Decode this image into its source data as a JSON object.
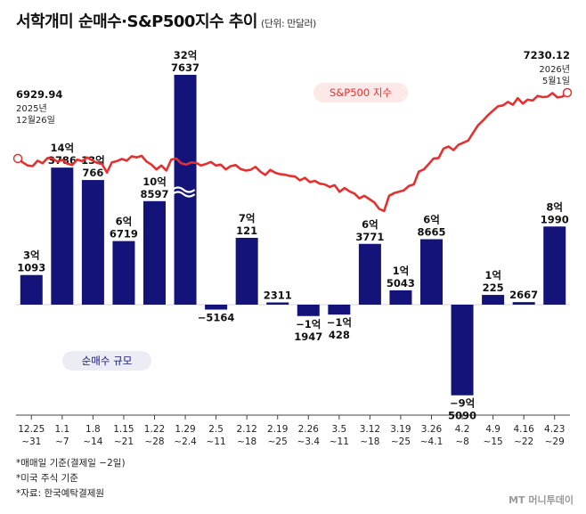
{
  "title": "서학개미 순매수·S&P500지수 추이",
  "unit": "(단위: 만달러)",
  "footnotes": [
    "*매매일 기준(결제일 −2일)",
    "*미국 주식 기준",
    "*자료: 한국예탁결제원"
  ],
  "logo": "MT 머니투데이",
  "colors": {
    "bar": "#13137a",
    "line": "#e53030",
    "legend_bg": "#ececf4"
  },
  "chart_data": {
    "type": "bar+line",
    "categories": [
      "12.25 ~31",
      "1.1 ~7",
      "1.8 ~14",
      "1.15 ~21",
      "1.22 ~28",
      "1.29 ~2.4",
      "2.5 ~11",
      "2.12 ~18",
      "2.19 ~25",
      "2.26 ~3.4",
      "3.5 ~11",
      "3.12 ~18",
      "3.19 ~25",
      "3.26 ~4.1",
      "4.2 ~8",
      "4.9 ~15",
      "4.16 ~22",
      "4.23 ~29"
    ],
    "bar_series": {
      "name": "순매수 규모",
      "values": [
        31093,
        143786,
        130766,
        66719,
        108597,
        327637,
        -5164,
        70121,
        2311,
        -11947,
        -10428,
        63771,
        15043,
        68665,
        -95090,
        10225,
        2667,
        81990
      ],
      "labels": [
        [
          "3억",
          "1093"
        ],
        [
          "14억",
          "3786"
        ],
        [
          "13억",
          "766"
        ],
        [
          "6억",
          "6719"
        ],
        [
          "10억",
          "8597"
        ],
        [
          "32억",
          "7637"
        ],
        [
          "−5164"
        ],
        [
          "7억",
          "121"
        ],
        [
          "2311"
        ],
        [
          "−1억",
          "1947"
        ],
        [
          "−1억",
          "428"
        ],
        [
          "6억",
          "3771"
        ],
        [
          "1억",
          "5043"
        ],
        [
          "6억",
          "8665"
        ],
        [
          "−9억",
          "5090"
        ],
        [
          "1억",
          "225"
        ],
        [
          "2667"
        ],
        [
          "8억",
          "1990"
        ]
      ],
      "axis_break": true
    },
    "line_series": {
      "name": "S&P500 지수",
      "start": {
        "value": "6929.94",
        "date_line1": "2025년",
        "date_line2": "12월26일"
      },
      "end": {
        "value": "7230.12",
        "date_line1": "2026년",
        "date_line2": "5월1일"
      },
      "values": [
        6929.94,
        6912,
        6898,
        6895,
        6920,
        6908,
        6932,
        6930,
        6915,
        6924,
        6906,
        6900,
        6925,
        6918,
        6935,
        6922,
        6910,
        6905,
        6866,
        6912,
        6918,
        6928,
        6920,
        6940,
        6935,
        6942,
        6916,
        6902,
        6880,
        6898,
        6875,
        6925,
        6930,
        6908,
        6902,
        6912,
        6910,
        6898,
        6905,
        6914,
        6898,
        6902,
        6880,
        6895,
        6900,
        6882,
        6875,
        6878,
        6892,
        6870,
        6855,
        6878,
        6865,
        6858,
        6856,
        6850,
        6848,
        6830,
        6842,
        6822,
        6828,
        6815,
        6812,
        6800,
        6808,
        6778,
        6795,
        6780,
        6770,
        6748,
        6760,
        6745,
        6730,
        6700,
        6690,
        6760,
        6772,
        6778,
        6785,
        6805,
        6812,
        6870,
        6880,
        6905,
        6930,
        6932,
        6975,
        6985,
        6968,
        6992,
        7002,
        7012,
        7048,
        7082,
        7104,
        7128,
        7148,
        7168,
        7172,
        7188,
        7175,
        7205,
        7180,
        7198,
        7194,
        7215,
        7210,
        7212,
        7228,
        7208,
        7212,
        7230.12
      ]
    }
  }
}
